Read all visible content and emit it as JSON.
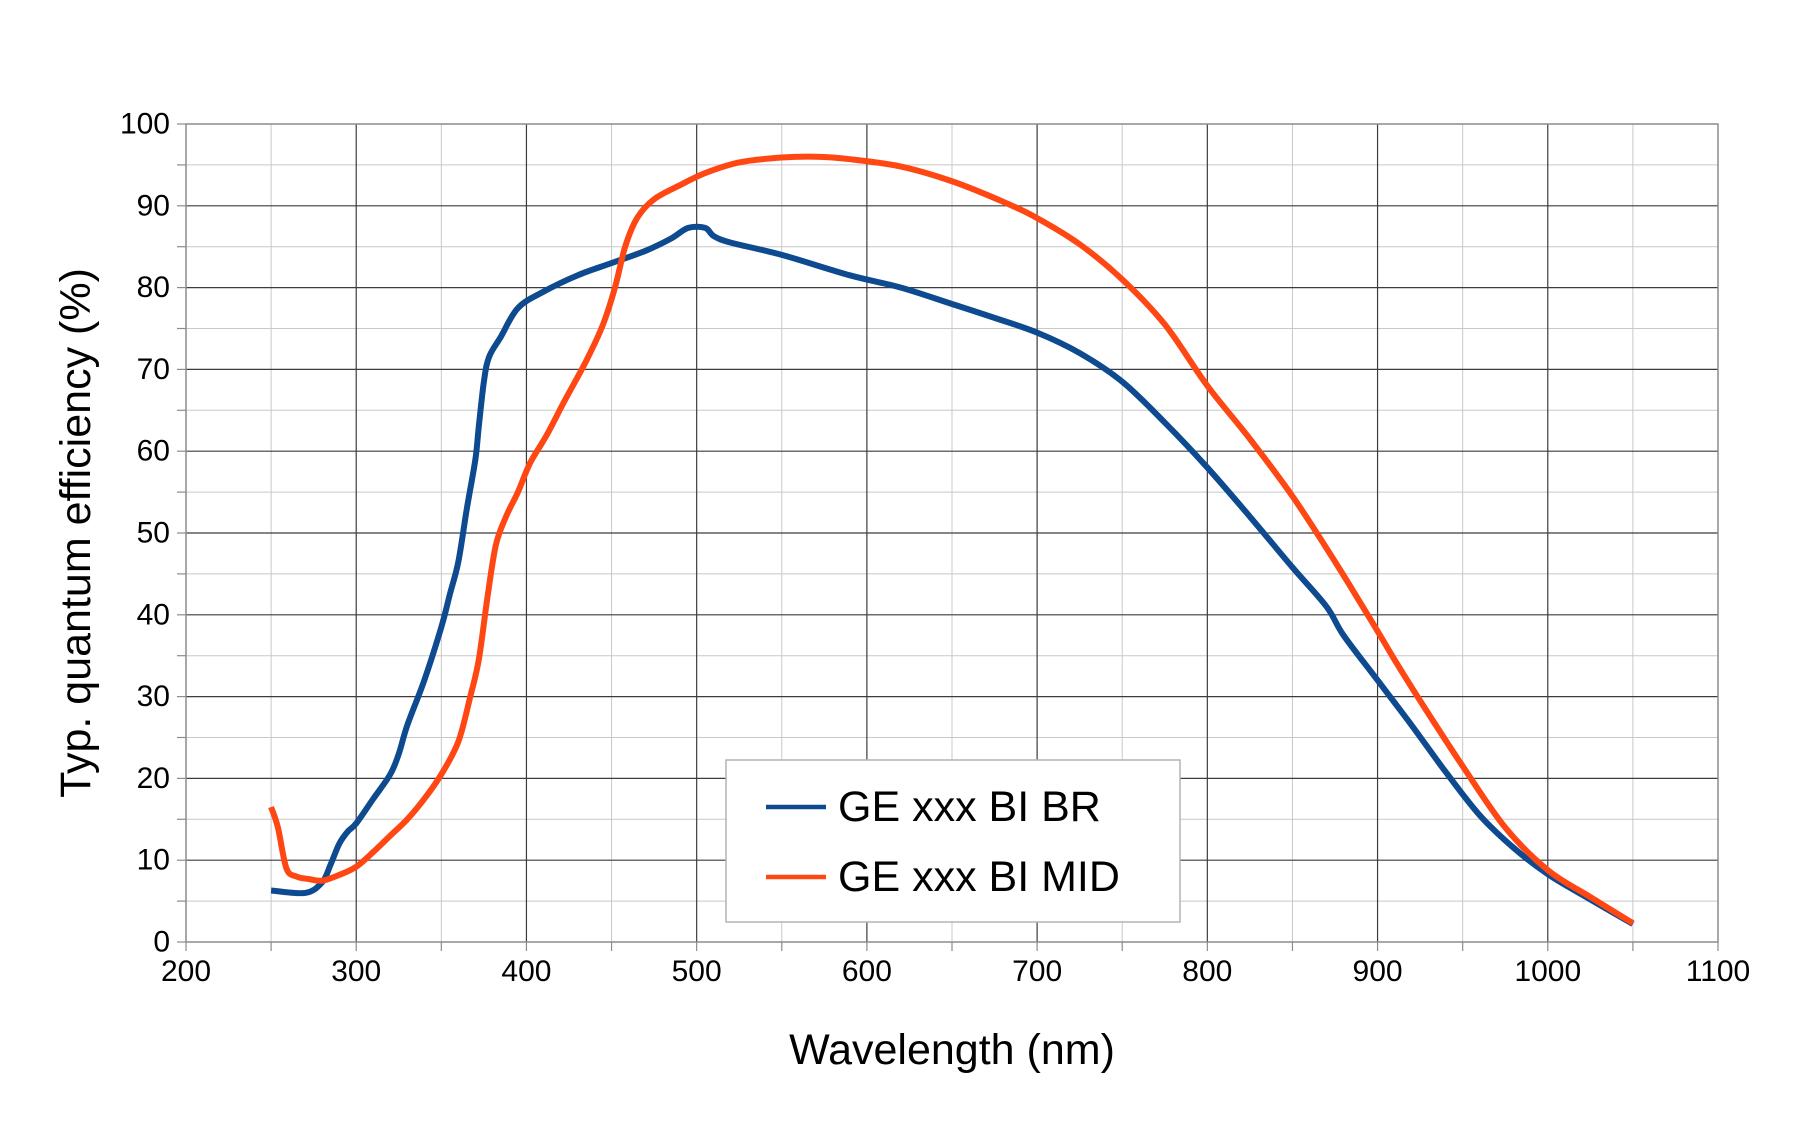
{
  "chart_data": {
    "type": "line",
    "title": "",
    "xlabel": "Wavelength (nm)",
    "ylabel": "Typ. quantum efficiency (%)",
    "xlim": [
      200,
      1100
    ],
    "ylim": [
      0,
      100
    ],
    "x_ticks": [
      200,
      300,
      400,
      500,
      600,
      700,
      800,
      900,
      1000,
      1100
    ],
    "y_ticks": [
      0,
      10,
      20,
      30,
      40,
      50,
      60,
      70,
      80,
      90,
      100
    ],
    "x_tick_labels": [
      "200",
      "300",
      "400",
      "500",
      "600",
      "700",
      "800",
      "900",
      "1000",
      "1100"
    ],
    "y_tick_labels": [
      "0",
      "10",
      "20",
      "30",
      "40",
      "50",
      "60",
      "70",
      "80",
      "90",
      "100"
    ],
    "x_minor_step": 50,
    "y_minor_step": 5,
    "grid": true,
    "legend_position": "bottom-center",
    "series": [
      {
        "name": "GE xxx BI BR",
        "color": "#0d4a8f",
        "points": [
          [
            250,
            6.3
          ],
          [
            270,
            6.0
          ],
          [
            280,
            7.3
          ],
          [
            285,
            9.5
          ],
          [
            290,
            12
          ],
          [
            295,
            13.5
          ],
          [
            300,
            14.5
          ],
          [
            310,
            17.5
          ],
          [
            320,
            20.5
          ],
          [
            325,
            23
          ],
          [
            330,
            26.5
          ],
          [
            340,
            32
          ],
          [
            350,
            38.5
          ],
          [
            355,
            42.5
          ],
          [
            360,
            46.5
          ],
          [
            365,
            53
          ],
          [
            370,
            59
          ],
          [
            372,
            63
          ],
          [
            375,
            68.5
          ],
          [
            378,
            71.5
          ],
          [
            385,
            74
          ],
          [
            395,
            77.5
          ],
          [
            410,
            79.5
          ],
          [
            430,
            81.5
          ],
          [
            450,
            83
          ],
          [
            470,
            84.5
          ],
          [
            485,
            86
          ],
          [
            495,
            87.3
          ],
          [
            505,
            87.3
          ],
          [
            510,
            86.3
          ],
          [
            520,
            85.5
          ],
          [
            550,
            84
          ],
          [
            590,
            81.5
          ],
          [
            620,
            80
          ],
          [
            650,
            78
          ],
          [
            675,
            76.3
          ],
          [
            700,
            74.5
          ],
          [
            725,
            72
          ],
          [
            750,
            68.5
          ],
          [
            775,
            63.5
          ],
          [
            800,
            58
          ],
          [
            825,
            52
          ],
          [
            850,
            45.8
          ],
          [
            870,
            41
          ],
          [
            880,
            37.5
          ],
          [
            900,
            32
          ],
          [
            920,
            26.5
          ],
          [
            940,
            20.8
          ],
          [
            960,
            15.5
          ],
          [
            980,
            11.5
          ],
          [
            1000,
            8.3
          ],
          [
            1020,
            5.8
          ],
          [
            1050,
            2.2
          ]
        ]
      },
      {
        "name": "GE xxx BI MID",
        "color": "#ff4714",
        "points": [
          [
            250,
            16.5
          ],
          [
            254,
            14
          ],
          [
            259,
            9
          ],
          [
            265,
            8
          ],
          [
            272,
            7.7
          ],
          [
            280,
            7.5
          ],
          [
            290,
            8.2
          ],
          [
            300,
            9.2
          ],
          [
            310,
            11
          ],
          [
            320,
            13
          ],
          [
            330,
            15
          ],
          [
            340,
            17.5
          ],
          [
            350,
            20.5
          ],
          [
            360,
            24.5
          ],
          [
            367,
            30
          ],
          [
            372,
            34.5
          ],
          [
            377,
            42
          ],
          [
            382,
            48.5
          ],
          [
            388,
            52
          ],
          [
            395,
            55
          ],
          [
            402,
            58.5
          ],
          [
            412,
            62
          ],
          [
            422,
            66
          ],
          [
            435,
            71
          ],
          [
            445,
            75.5
          ],
          [
            452,
            80
          ],
          [
            458,
            85
          ],
          [
            465,
            88.5
          ],
          [
            475,
            90.8
          ],
          [
            490,
            92.5
          ],
          [
            505,
            94
          ],
          [
            525,
            95.3
          ],
          [
            550,
            95.9
          ],
          [
            570,
            96
          ],
          [
            590,
            95.7
          ],
          [
            620,
            94.8
          ],
          [
            650,
            93
          ],
          [
            680,
            90.5
          ],
          [
            700,
            88.5
          ],
          [
            725,
            85.3
          ],
          [
            750,
            81
          ],
          [
            775,
            75.5
          ],
          [
            800,
            68
          ],
          [
            825,
            61.5
          ],
          [
            850,
            54.5
          ],
          [
            875,
            46.5
          ],
          [
            900,
            38
          ],
          [
            910,
            34.5
          ],
          [
            925,
            29.5
          ],
          [
            950,
            21.5
          ],
          [
            975,
            14
          ],
          [
            1000,
            8.8
          ],
          [
            1025,
            5.5
          ],
          [
            1050,
            2.3
          ]
        ]
      }
    ]
  }
}
